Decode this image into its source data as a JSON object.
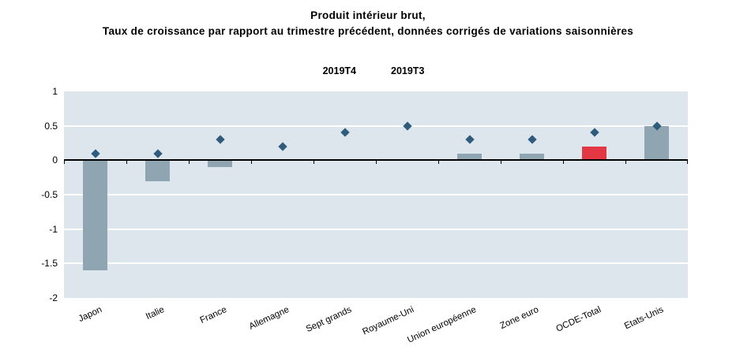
{
  "title": {
    "line1": "Produit intérieur brut,",
    "line2": "Taux de croissance par rapport au trimestre précédent, données corrigés de variations saisonnières"
  },
  "legend": {
    "items": [
      {
        "label": "2019T4",
        "marker": "square"
      },
      {
        "label": "2019T3",
        "marker": "diamond"
      }
    ]
  },
  "colors": {
    "bar": "#8fa5b2",
    "bar_highlight": "#e33843",
    "diamond": "#2f5b7d",
    "plot_bg": "#dce6ec",
    "gridline": "#ffffff",
    "axis": "#000000"
  },
  "chart_data": {
    "type": "bar",
    "title": "Produit intérieur brut, Taux de croissance par rapport au trimestre précédent, données corrigés de variations saisonnières",
    "categories": [
      "Japon",
      "Italie",
      "France",
      "Allemagne",
      "Sept grands",
      "Royaume-Uni",
      "Union européenne",
      "Zone euro",
      "OCDE-Total",
      "Etats-Unis"
    ],
    "series": [
      {
        "name": "2019T4",
        "type": "bar",
        "values": [
          -1.6,
          -0.3,
          -0.1,
          0.0,
          0.0,
          0.0,
          0.1,
          0.1,
          0.2,
          0.5
        ],
        "highlight_index": 8
      },
      {
        "name": "2019T3",
        "type": "scatter",
        "marker": "diamond",
        "values": [
          0.1,
          0.1,
          0.3,
          0.2,
          0.4,
          0.5,
          0.3,
          0.3,
          0.4,
          0.5
        ]
      }
    ],
    "xlabel": "",
    "ylabel": "",
    "ylim": [
      -2,
      1
    ],
    "yticks": [
      "1",
      "0.5",
      "0",
      "-0.5",
      "-1",
      "-1.5",
      "-2"
    ],
    "gridlines": [
      0.5,
      -0.5,
      -1,
      -1.5
    ],
    "grid": "horizontal",
    "legend_position": "top-center"
  }
}
